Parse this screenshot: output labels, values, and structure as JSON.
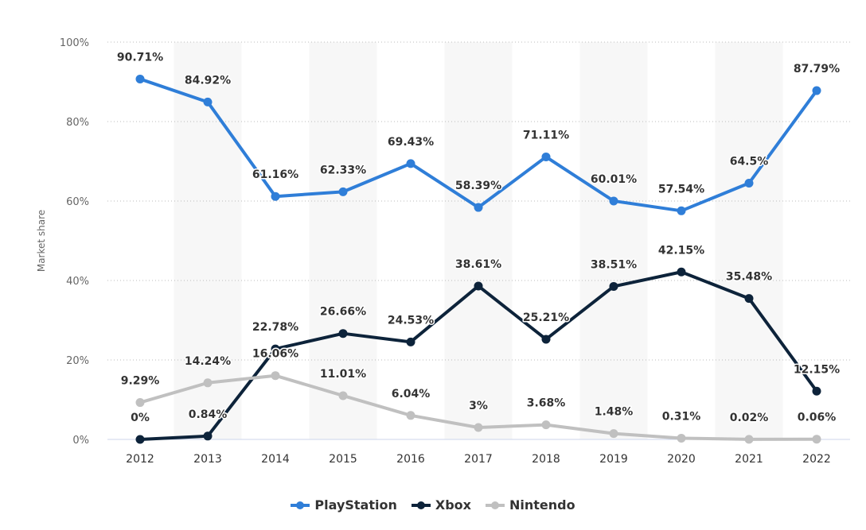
{
  "chart_data": {
    "type": "line",
    "title": "",
    "xlabel": "",
    "ylabel": "Market share",
    "ylim": [
      0,
      100
    ],
    "yticks": [
      "0%",
      "20%",
      "40%",
      "60%",
      "80%",
      "100%"
    ],
    "ytick_values": [
      0,
      20,
      40,
      60,
      80,
      100
    ],
    "grid": true,
    "legend": "bottom",
    "categories": [
      "2012",
      "2013",
      "2014",
      "2015",
      "2016",
      "2017",
      "2018",
      "2019",
      "2020",
      "2021",
      "2022"
    ],
    "series": [
      {
        "name": "PlayStation",
        "color": "#2f7ed8",
        "values": [
          90.71,
          84.92,
          61.16,
          62.33,
          69.43,
          58.39,
          71.11,
          60.01,
          57.54,
          64.5,
          87.79
        ],
        "labels": [
          "90.71%",
          "84.92%",
          "61.16%",
          "62.33%",
          "69.43%",
          "58.39%",
          "71.11%",
          "60.01%",
          "57.54%",
          "64.5%",
          "87.79%"
        ]
      },
      {
        "name": "Xbox",
        "color": "#0d233a",
        "values": [
          0,
          0.84,
          22.78,
          26.66,
          24.53,
          38.61,
          25.21,
          38.51,
          42.15,
          35.48,
          12.15
        ],
        "labels": [
          "0%",
          "0.84%",
          "22.78%",
          "26.66%",
          "24.53%",
          "38.61%",
          "25.21%",
          "38.51%",
          "42.15%",
          "35.48%",
          "12.15%"
        ]
      },
      {
        "name": "Nintendo",
        "color": "#c0c0c0",
        "values": [
          9.29,
          14.24,
          16.06,
          11.01,
          6.04,
          3,
          3.68,
          1.48,
          0.31,
          0.02,
          0.06
        ],
        "labels": [
          "9.29%",
          "14.24%",
          "16.06%",
          "11.01%",
          "6.04%",
          "3%",
          "3.68%",
          "1.48%",
          "0.31%",
          "0.02%",
          "0.06%"
        ]
      }
    ]
  }
}
